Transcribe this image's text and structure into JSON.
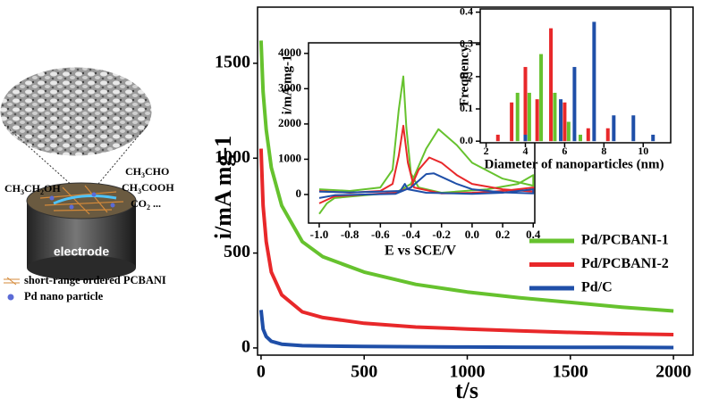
{
  "schematic": {
    "reactant": "CH3CH2OH",
    "products": [
      "CH3CHO",
      "CH3COOH",
      "CO2 ..."
    ],
    "electrode": "electrode",
    "legend": [
      "short-range ordered PCBANI",
      "Pd nano particle"
    ]
  },
  "chart_data": [
    {
      "type": "line",
      "xlabel": "t/s",
      "ylabel": "i/mA mg-1",
      "xlim": [
        -17,
        2095
      ],
      "ylim": [
        -38,
        1796
      ],
      "xticks": [
        0,
        500,
        1000,
        1500,
        2000
      ],
      "yticks": [
        0,
        500,
        1000,
        1500
      ],
      "x": [
        0,
        10,
        25,
        50,
        100,
        200,
        300,
        500,
        750,
        1000,
        1250,
        1500,
        1750,
        2000
      ],
      "series": [
        {
          "name": "Pd/PCBANI-1",
          "color": "#66c22e",
          "values": [
            1620,
            1350,
            1150,
            950,
            750,
            560,
            480,
            400,
            335,
            295,
            265,
            240,
            215,
            195
          ]
        },
        {
          "name": "Pd/PCBANI-2",
          "color": "#e8282a",
          "values": [
            1050,
            750,
            560,
            400,
            280,
            190,
            160,
            130,
            110,
            100,
            90,
            82,
            75,
            70
          ]
        },
        {
          "name": "Pd/C",
          "color": "#1f4fa8",
          "values": [
            200,
            100,
            60,
            35,
            20,
            12,
            10,
            8,
            6,
            5,
            4,
            3,
            3,
            2
          ]
        }
      ]
    },
    {
      "type": "line",
      "xlabel": "E vs SCE/V",
      "ylabel": "i/mA mg-1",
      "xlim": [
        -1.07,
        0.41
      ],
      "ylim": [
        -810,
        4300
      ],
      "xticks": [
        {
          "value": -1,
          "label": "-1.0"
        },
        -0.8,
        -0.6,
        -0.4,
        -0.2,
        {
          "value": 0,
          "label": "0.0"
        },
        0.2,
        0.4
      ],
      "yticks": [
        0,
        1000,
        2000,
        3000,
        4000
      ],
      "series": [
        {
          "color": "#66c22e",
          "x": [
            -1.0,
            -0.95,
            -0.9,
            -0.7,
            -0.5,
            -0.4,
            -0.3,
            -0.22,
            -0.1,
            0.0,
            0.2,
            0.4,
            0.4,
            0.3,
            0.1,
            -0.2,
            -0.35,
            -0.4,
            -0.43,
            -0.45,
            -0.48,
            -0.52,
            -0.6,
            -0.8,
            -1.0
          ],
          "values": [
            -550,
            -250,
            -100,
            -20,
            50,
            300,
            1300,
            1850,
            1400,
            900,
            450,
            250,
            550,
            300,
            150,
            50,
            200,
            600,
            1900,
            3350,
            2400,
            700,
            200,
            100,
            150
          ]
        },
        {
          "color": "#e8282a",
          "x": [
            -1.0,
            -0.9,
            -0.7,
            -0.5,
            -0.4,
            -0.35,
            -0.28,
            -0.2,
            -0.1,
            0.0,
            0.2,
            0.4,
            0.4,
            0.2,
            0.0,
            -0.2,
            -0.38,
            -0.42,
            -0.45,
            -0.48,
            -0.52,
            -0.6,
            -0.8,
            -1.0
          ],
          "values": [
            -250,
            -50,
            0,
            50,
            200,
            700,
            1050,
            900,
            550,
            300,
            150,
            80,
            200,
            100,
            50,
            30,
            200,
            900,
            1950,
            1100,
            300,
            100,
            50,
            100
          ]
        },
        {
          "color": "#1f4fa8",
          "x": [
            -1.0,
            -0.9,
            -0.7,
            -0.5,
            -0.4,
            -0.3,
            -0.25,
            -0.1,
            0.0,
            0.2,
            0.4,
            0.4,
            0.2,
            0.0,
            -0.3,
            -0.42,
            -0.44,
            -0.47,
            -0.6,
            -0.8,
            -1.0
          ],
          "values": [
            -100,
            -20,
            0,
            20,
            200,
            580,
            600,
            300,
            150,
            60,
            30,
            150,
            50,
            20,
            50,
            150,
            300,
            100,
            80,
            60,
            80
          ]
        }
      ]
    },
    {
      "type": "bar",
      "xlabel": "Diameter of nanoparticles (nm)",
      "ylabel": "Frequency",
      "xlim": [
        1.7,
        11.4
      ],
      "ylim": [
        -0.005,
        0.41
      ],
      "xticks": [
        2,
        4,
        6,
        8,
        10
      ],
      "yticks": [
        {
          "value": 0,
          "label": "0.0"
        },
        0.1,
        0.2,
        0.3,
        0.4
      ],
      "series": [
        {
          "color": "#e8282a",
          "x": [
            2.6,
            3.3,
            4.0,
            4.6,
            5.3,
            6.0,
            7.2,
            8.2
          ],
          "values": [
            0.02,
            0.12,
            0.23,
            0.13,
            0.35,
            0.12,
            0.04,
            0.04
          ]
        },
        {
          "color": "#66c22e",
          "x": [
            3.6,
            4.2,
            4.8,
            5.5,
            6.2,
            6.8
          ],
          "values": [
            0.15,
            0.15,
            0.27,
            0.15,
            0.06,
            0.02
          ]
        },
        {
          "color": "#1f4fa8",
          "x": [
            4.0,
            5.8,
            6.5,
            7.5,
            8.5,
            9.5,
            10.5
          ],
          "values": [
            0.02,
            0.13,
            0.23,
            0.37,
            0.08,
            0.08,
            0.02
          ]
        }
      ]
    }
  ]
}
